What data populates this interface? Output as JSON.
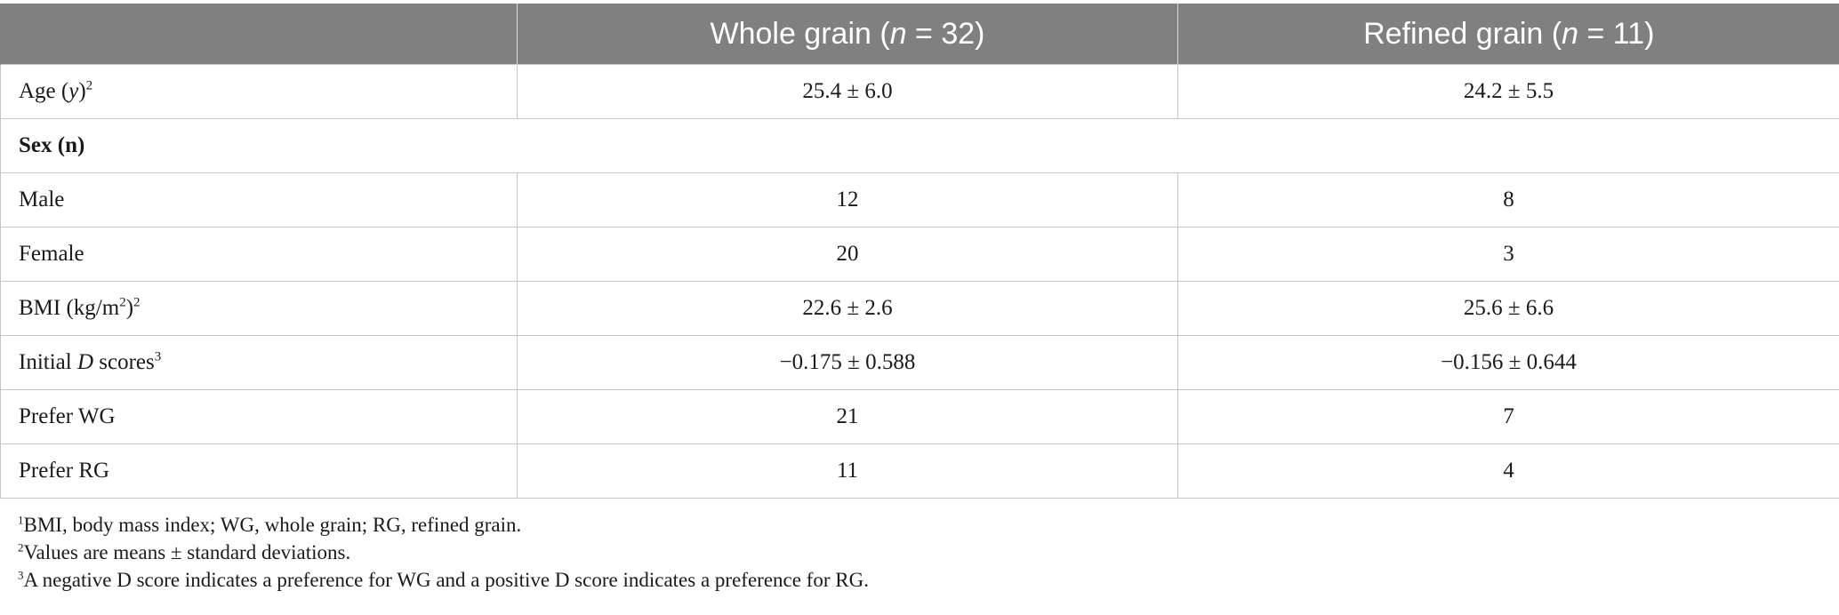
{
  "header": {
    "col1": "",
    "col2_pre": "Whole grain (",
    "col2_n": "n",
    "col2_post": " = 32)",
    "col3_pre": "Refined grain (",
    "col3_n": "n",
    "col3_post": " = 11)"
  },
  "rows": {
    "age": {
      "label_pre": "Age (",
      "label_it": "y",
      "label_post": ")",
      "sup": "2",
      "wg": "25.4 ± 6.0",
      "rg": "24.2 ± 5.5"
    },
    "sex": {
      "label": "Sex (n)"
    },
    "male": {
      "label": "Male",
      "wg": "12",
      "rg": "8"
    },
    "female": {
      "label": "Female",
      "wg": "20",
      "rg": "3"
    },
    "bmi": {
      "label_pre": "BMI (kg/m",
      "sq": "2",
      "label_post": ")",
      "sup": "2",
      "wg": "22.6 ± 2.6",
      "rg": "25.6 ± 6.6"
    },
    "dscore": {
      "label_pre": "Initial ",
      "label_it": "D",
      "label_post": " scores",
      "sup": "3",
      "wg": "−0.175 ± 0.588",
      "rg": "−0.156 ± 0.644"
    },
    "prefer_wg": {
      "label": "Prefer WG",
      "wg": "21",
      "rg": "7"
    },
    "prefer_rg": {
      "label": "Prefer RG",
      "wg": "11",
      "rg": "4"
    }
  },
  "footnotes": [
    {
      "mark": "1",
      "text": "BMI, body mass index; WG, whole grain; RG, refined grain."
    },
    {
      "mark": "2",
      "text": "Values are means ± standard deviations."
    },
    {
      "mark": "3",
      "text": "A negative D score indicates a preference for WG and a positive D score indicates a preference for RG."
    }
  ]
}
